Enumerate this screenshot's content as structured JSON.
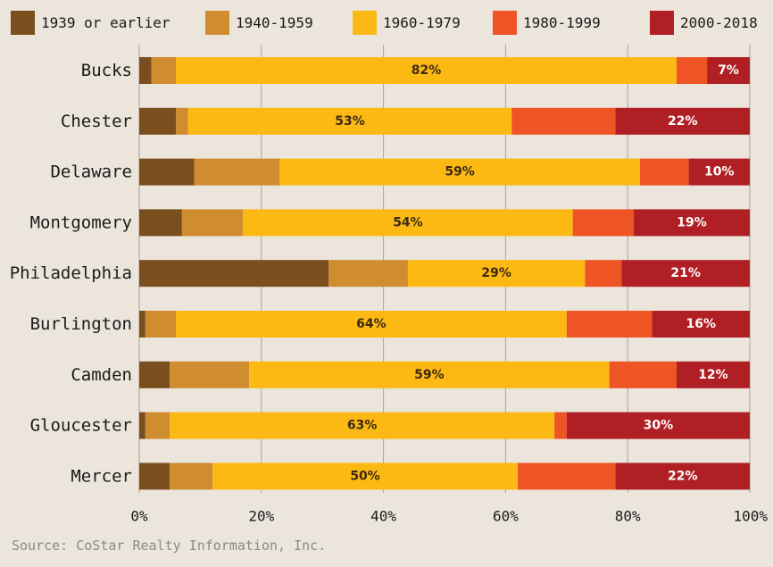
{
  "chart_data": {
    "type": "bar",
    "orientation": "horizontal",
    "stacked": true,
    "categories": [
      "Bucks",
      "Chester",
      "Delaware",
      "Montgomery",
      "Philadelphia",
      "Burlington",
      "Camden",
      "Gloucester",
      "Mercer"
    ],
    "series": [
      {
        "name": "1939 or earlier",
        "color": "#7a4e1d",
        "values": [
          2,
          6,
          9,
          7,
          31,
          1,
          5,
          1,
          5
        ]
      },
      {
        "name": "1940-1959",
        "color": "#cf8d30",
        "values": [
          4,
          2,
          14,
          10,
          13,
          5,
          13,
          4,
          7
        ]
      },
      {
        "name": "1960-1979",
        "color": "#fdb913",
        "values": [
          82,
          53,
          59,
          54,
          29,
          64,
          59,
          63,
          50
        ]
      },
      {
        "name": "1980-1999",
        "color": "#ee5424",
        "values": [
          5,
          17,
          8,
          10,
          6,
          14,
          11,
          2,
          16
        ]
      },
      {
        "name": "2000-2018",
        "color": "#b01f24",
        "values": [
          7,
          22,
          10,
          19,
          21,
          16,
          12,
          30,
          22
        ]
      }
    ],
    "data_labels": [
      {
        "category": "Bucks",
        "series": "1960-1979",
        "text": "82%"
      },
      {
        "category": "Bucks",
        "series": "2000-2018",
        "text": "7%"
      },
      {
        "category": "Chester",
        "series": "1960-1979",
        "text": "53%"
      },
      {
        "category": "Chester",
        "series": "2000-2018",
        "text": "22%"
      },
      {
        "category": "Delaware",
        "series": "1960-1979",
        "text": "59%"
      },
      {
        "category": "Delaware",
        "series": "2000-2018",
        "text": "10%"
      },
      {
        "category": "Montgomery",
        "series": "1960-1979",
        "text": "54%"
      },
      {
        "category": "Montgomery",
        "series": "2000-2018",
        "text": "19%"
      },
      {
        "category": "Philadelphia",
        "series": "1960-1979",
        "text": "29%"
      },
      {
        "category": "Philadelphia",
        "series": "2000-2018",
        "text": "21%"
      },
      {
        "category": "Burlington",
        "series": "1960-1979",
        "text": "64%"
      },
      {
        "category": "Burlington",
        "series": "2000-2018",
        "text": "16%"
      },
      {
        "category": "Camden",
        "series": "1960-1979",
        "text": "59%"
      },
      {
        "category": "Camden",
        "series": "2000-2018",
        "text": "12%"
      },
      {
        "category": "Gloucester",
        "series": "1960-1979",
        "text": "63%"
      },
      {
        "category": "Gloucester",
        "series": "2000-2018",
        "text": "30%"
      },
      {
        "category": "Mercer",
        "series": "1960-1979",
        "text": "50%"
      },
      {
        "category": "Mercer",
        "series": "2000-2018",
        "text": "22%"
      }
    ],
    "x_ticks": [
      "0%",
      "20%",
      "40%",
      "60%",
      "80%",
      "100%"
    ],
    "xlim": [
      0,
      100
    ],
    "grid": true,
    "legend_position": "top"
  },
  "source": "Source: CoStar Realty Information, Inc."
}
